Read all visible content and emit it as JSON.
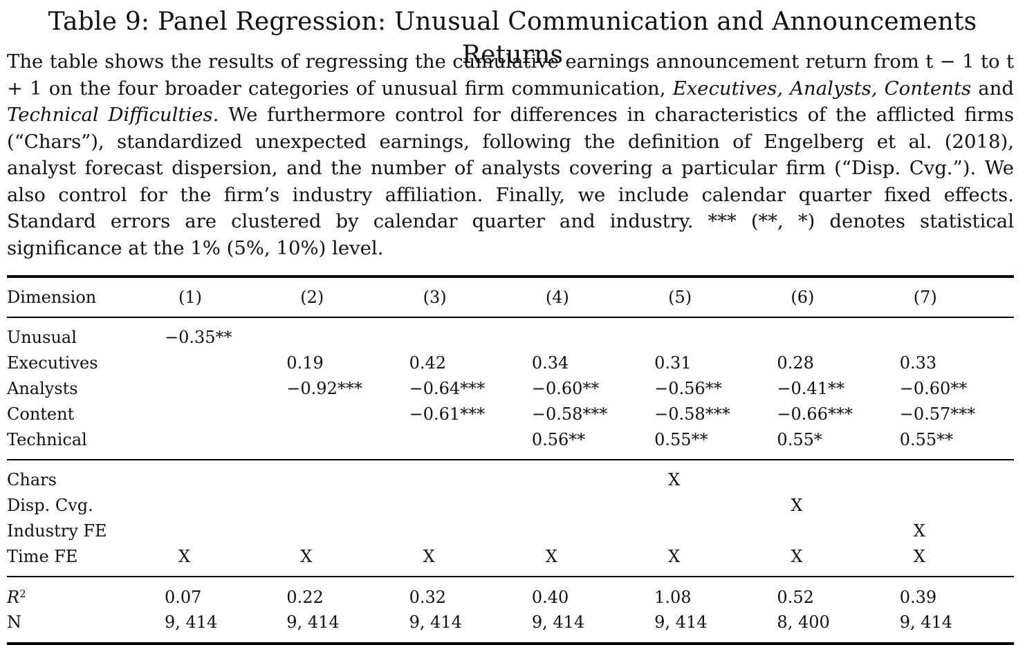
{
  "title": "Table 9: Panel Regression: Unusual Communication and Announcements Returns",
  "caption": {
    "p1": "The table shows the results of regressing the cumulative earnings announcement return from t − 1 to t + 1 on the four broader categories of unusual firm communication, ",
    "italic1": "Executives, Analysts, Contents",
    "p2": " and ",
    "italic2": "Technical Difficulties",
    "p3": ". We furthermore control for differences in characteristics of the afflicted firms (“Chars”), standardized unexpected earnings, following the definition of Engelberg et al. (2018), analyst forecast dispersion, and the number of analysts covering a particular firm (“Disp. Cvg.”). We also control for the firm’s industry affiliation. Finally, we include calendar quarter fixed effects. Standard errors are clustered by calendar quarter and industry. *** (**, *) denotes statistical significance at the 1% (5%, 10%) level."
  },
  "table": {
    "header": [
      "Dimension",
      "(1)",
      "(2)",
      "(3)",
      "(4)",
      "(5)",
      "(6)",
      "(7)"
    ],
    "coef_rows": [
      {
        "label": "Unusual",
        "cells": [
          "−0.35**",
          "",
          "",
          "",
          "",
          "",
          ""
        ]
      },
      {
        "label": "Executives",
        "cells": [
          "",
          "0.19",
          "0.42",
          "0.34",
          "0.31",
          "0.28",
          "0.33"
        ]
      },
      {
        "label": "Analysts",
        "cells": [
          "",
          "−0.92***",
          "−0.64***",
          "−0.60**",
          "−0.56**",
          "−0.41**",
          "−0.60**"
        ]
      },
      {
        "label": "Content",
        "cells": [
          "",
          "",
          "−0.61***",
          "−0.58***",
          "−0.58***",
          "−0.66***",
          "−0.57***"
        ]
      },
      {
        "label": "Technical",
        "cells": [
          "",
          "",
          "",
          "0.56**",
          "0.55**",
          "0.55*",
          "0.55**"
        ]
      }
    ],
    "control_rows": [
      {
        "label": "Chars",
        "cells": [
          "",
          "",
          "",
          "",
          "X",
          "",
          ""
        ]
      },
      {
        "label": "Disp. Cvg.",
        "cells": [
          "",
          "",
          "",
          "",
          "",
          "X",
          ""
        ]
      },
      {
        "label": "Industry FE",
        "cells": [
          "",
          "",
          "",
          "",
          "",
          "",
          "X"
        ]
      },
      {
        "label": "Time FE",
        "cells": [
          "X",
          "X",
          "X",
          "X",
          "X",
          "X",
          "X"
        ]
      }
    ],
    "stat_rows": [
      {
        "label": "R",
        "label_sup": "2",
        "cells": [
          "0.07",
          "0.22",
          "0.32",
          "0.40",
          "1.08",
          "0.52",
          "0.39"
        ]
      },
      {
        "label": "N",
        "cells": [
          "9, 414",
          "9, 414",
          "9, 414",
          "9, 414",
          "9, 414",
          "8, 400",
          "9, 414"
        ]
      }
    ]
  }
}
